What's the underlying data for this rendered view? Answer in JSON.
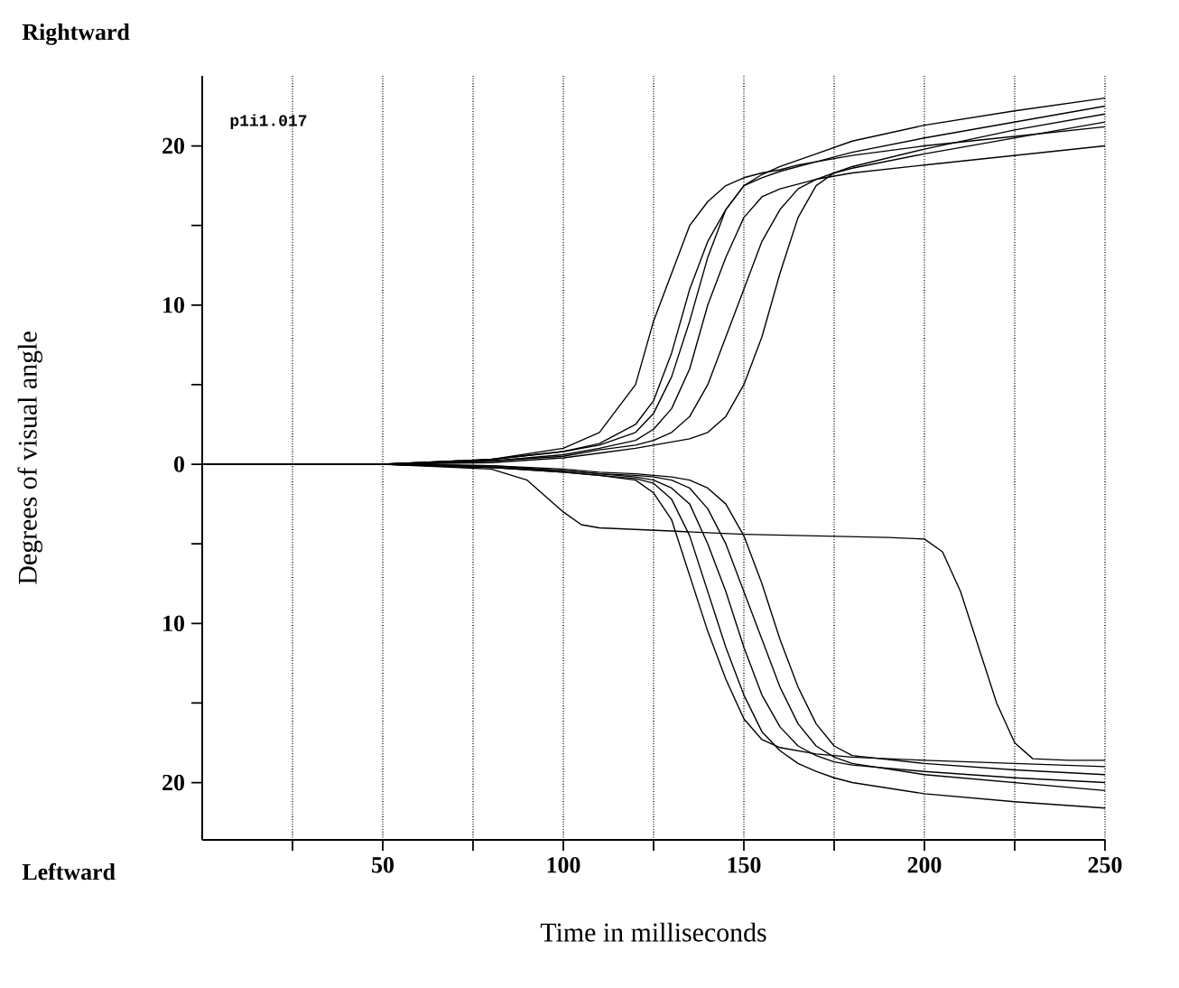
{
  "chart_data": {
    "type": "line",
    "xlabel": "Time in milliseconds",
    "ylabel": "Degrees of visual angle",
    "annotations": [
      "Rightward",
      "Leftward",
      "p1i1.017"
    ],
    "x": [
      0,
      50,
      80,
      100,
      110,
      120,
      125,
      130,
      135,
      140,
      145,
      150,
      155,
      160,
      165,
      170,
      175,
      180,
      200,
      225,
      250
    ],
    "xlim": [
      0,
      250
    ],
    "ylim": [
      -23.6,
      24.4
    ],
    "xticks": [
      {
        "value": 25,
        "label": null
      },
      50,
      {
        "value": 75,
        "label": null
      },
      100,
      {
        "value": 125,
        "label": null
      },
      150,
      {
        "value": 175,
        "label": null
      },
      200,
      {
        "value": 225,
        "label": null
      },
      250
    ],
    "yticks": [
      {
        "value": -20,
        "label": "20"
      },
      {
        "value": -15,
        "label": null
      },
      {
        "value": -10,
        "label": "10"
      },
      {
        "value": -5,
        "label": null
      },
      0,
      {
        "value": 5,
        "label": null
      },
      10,
      {
        "value": 15,
        "label": null
      },
      20
    ],
    "grid": "x",
    "line_style": "solid",
    "marker": "none",
    "series": [
      {
        "color": "#000000",
        "values": [
          0,
          0,
          0.3,
          1,
          2,
          5,
          9,
          12,
          15,
          16.5,
          17.5,
          18,
          18.3,
          18.5,
          18.8,
          19,
          19.2,
          19.4,
          20,
          20.6,
          21.2
        ]
      },
      {
        "color": "#000000",
        "values": [
          0,
          0,
          0.3,
          0.8,
          1.3,
          2.5,
          4,
          7,
          11,
          14,
          16,
          17.5,
          18,
          18.4,
          18.7,
          19,
          19.3,
          19.6,
          20.5,
          21.5,
          22.5
        ]
      },
      {
        "color": "#000000",
        "values": [
          0,
          0,
          0.2,
          0.6,
          1,
          1.5,
          2.2,
          3.5,
          6,
          10,
          13,
          15.5,
          16.8,
          17.3,
          17.6,
          17.9,
          18.1,
          18.3,
          18.8,
          19.4,
          20
        ]
      },
      {
        "color": "#000000",
        "values": [
          0,
          0,
          0.2,
          0.5,
          0.9,
          1.2,
          1.5,
          2,
          3,
          5,
          8,
          11,
          14,
          16,
          17.3,
          17.9,
          18.3,
          18.6,
          19.5,
          20.5,
          21.5
        ]
      },
      {
        "color": "#000000",
        "values": [
          0,
          0,
          0.1,
          0.4,
          0.7,
          1,
          1.2,
          1.4,
          1.6,
          2,
          3,
          5,
          8,
          12,
          15.5,
          17.5,
          18.3,
          18.7,
          19.8,
          21,
          22
        ]
      },
      {
        "color": "#000000",
        "values": [
          0,
          0,
          0.3,
          0.8,
          1.2,
          2,
          3.2,
          5.5,
          9,
          13,
          16,
          17.5,
          18.2,
          18.7,
          19.1,
          19.5,
          19.9,
          20.3,
          21.3,
          22.2,
          23
        ]
      },
      {
        "color": "#000000",
        "values": [
          0,
          0,
          -0.2,
          -0.5,
          -0.7,
          -1,
          -1.8,
          -3.5,
          -7,
          -10.5,
          -13.5,
          -16,
          -17.3,
          -17.8,
          -18,
          -18.2,
          -18.3,
          -18.4,
          -18.6,
          -18.8,
          -19
        ]
      },
      {
        "color": "#000000",
        "values": [
          0,
          0,
          -0.2,
          -0.5,
          -0.7,
          -0.9,
          -1.2,
          -2.2,
          -4.5,
          -8,
          -11.5,
          -14.5,
          -16.8,
          -18,
          -18.8,
          -19.3,
          -19.7,
          -20,
          -20.7,
          -21.2,
          -21.6
        ]
      },
      {
        "color": "#000000",
        "values": [
          0,
          0,
          -0.2,
          -0.4,
          -0.6,
          -0.8,
          -1,
          -1.5,
          -2.5,
          -5,
          -8,
          -11.5,
          -14.5,
          -16.5,
          -17.7,
          -18.3,
          -18.7,
          -18.9,
          -19.3,
          -19.7,
          -20
        ]
      },
      {
        "color": "#000000",
        "values": [
          0,
          0,
          -0.1,
          -0.4,
          -0.6,
          -0.7,
          -0.8,
          -1,
          -1.5,
          -2.8,
          -5,
          -8,
          -11,
          -14,
          -16.3,
          -17.7,
          -18.4,
          -18.8,
          -19.5,
          -20,
          -20.5
        ]
      },
      {
        "color": "#000000",
        "values": [
          0,
          0,
          -0.1,
          -0.3,
          -0.5,
          -0.6,
          -0.7,
          -0.8,
          -1,
          -1.5,
          -2.5,
          -4.5,
          -7.5,
          -11,
          -14,
          -16.3,
          -17.7,
          -18.3,
          -18.8,
          -19.2,
          -19.5
        ]
      },
      {
        "color": "#000000",
        "x": [
          0,
          50,
          80,
          90,
          95,
          100,
          105,
          110,
          130,
          150,
          170,
          190,
          200,
          205,
          210,
          215,
          220,
          225,
          230,
          240,
          250
        ],
        "values": [
          0,
          0,
          -0.3,
          -1,
          -2,
          -3,
          -3.8,
          -4,
          -4.2,
          -4.4,
          -4.5,
          -4.6,
          -4.7,
          -5.5,
          -8,
          -11.5,
          -15,
          -17.5,
          -18.5,
          -18.6,
          -18.6
        ]
      }
    ]
  }
}
